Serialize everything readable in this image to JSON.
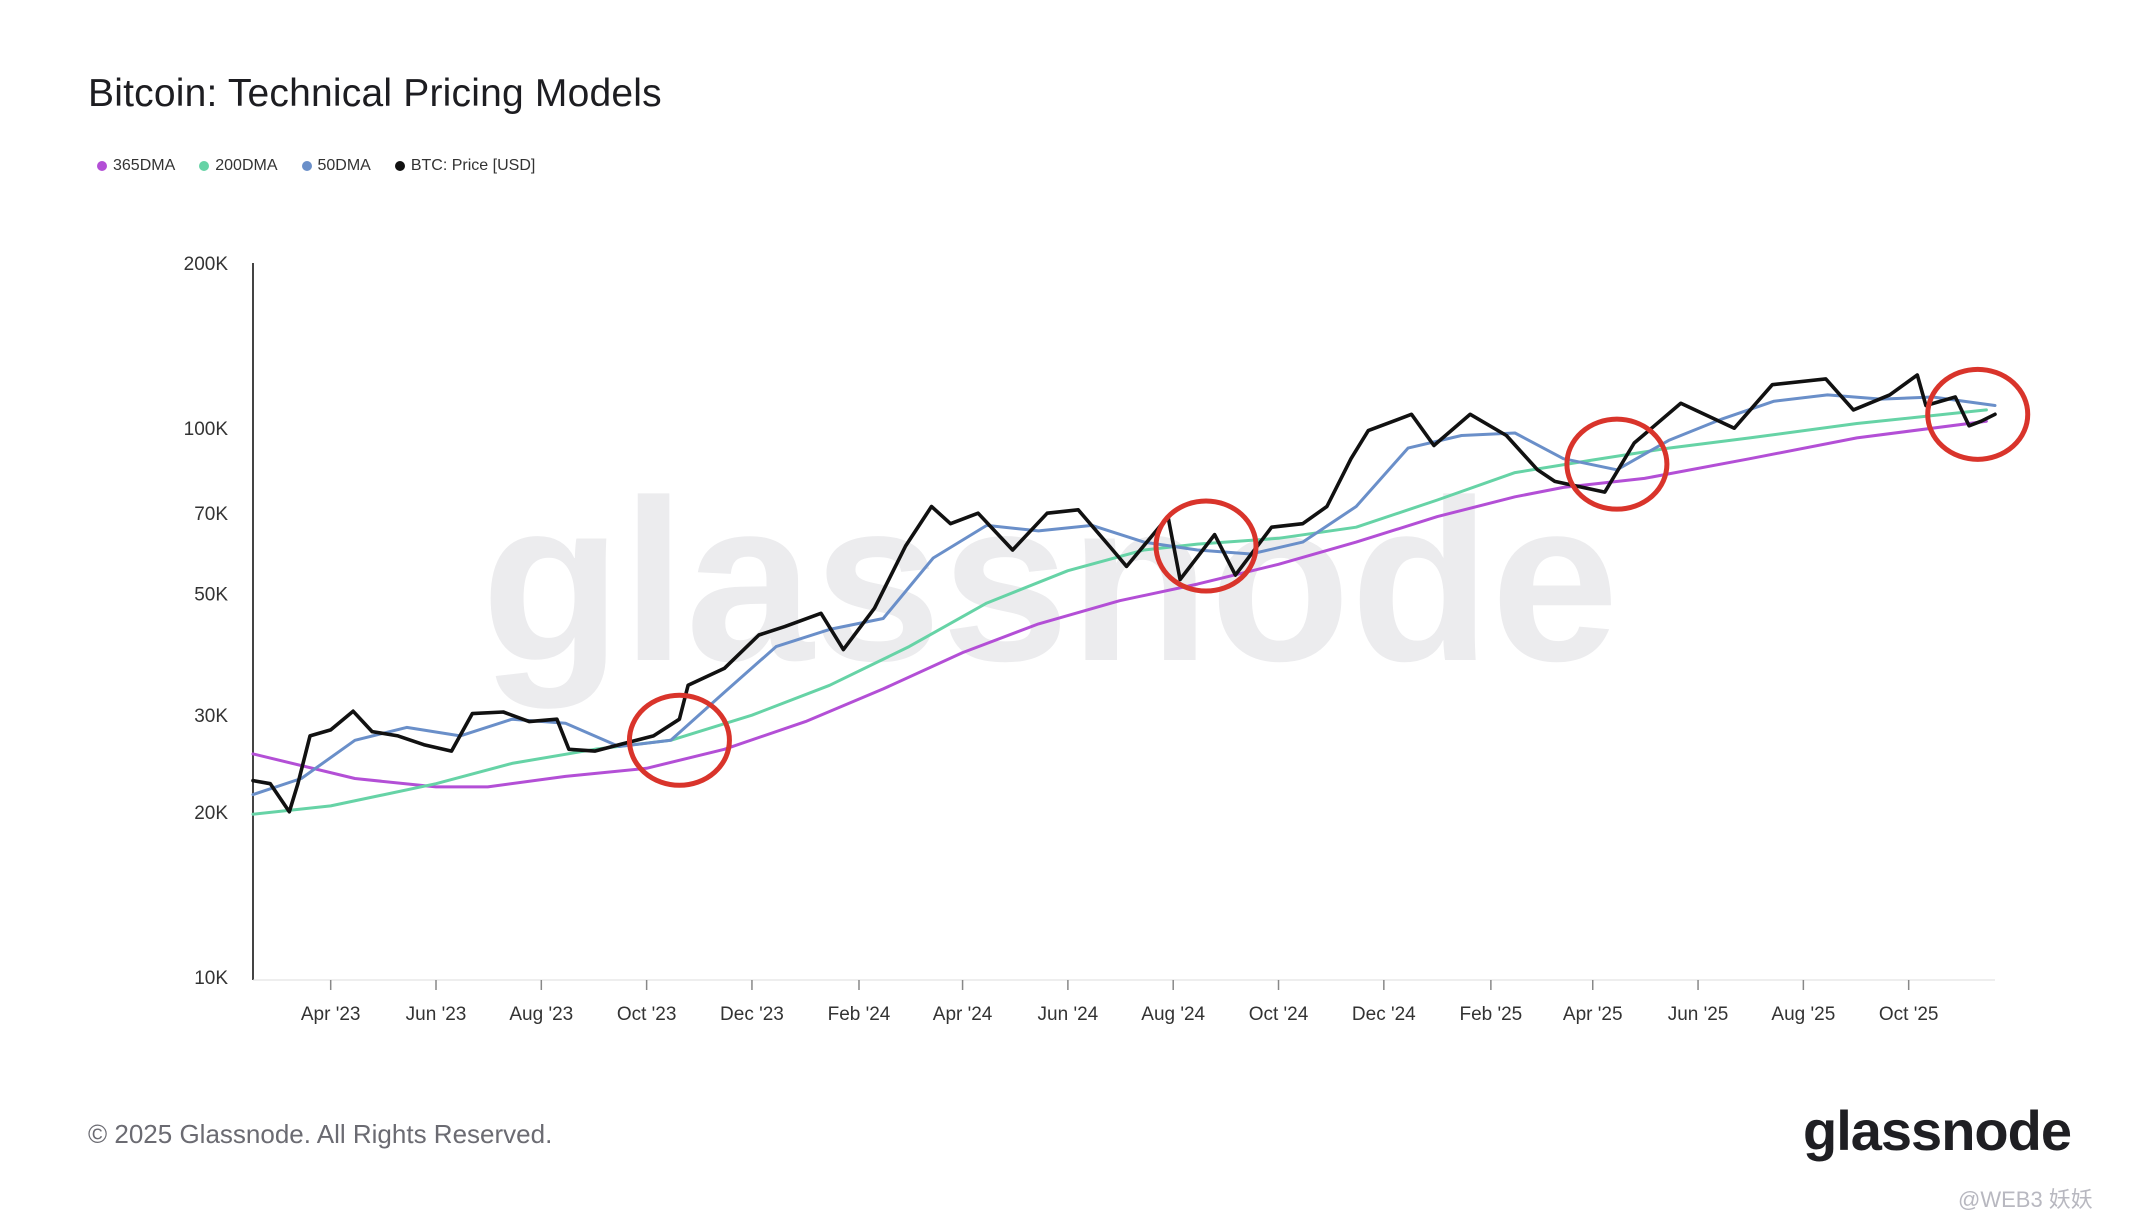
{
  "header": {
    "title": "Bitcoin: Technical Pricing Models"
  },
  "footer": {
    "copyright": "© 2025 Glassnode. All Rights Reserved.",
    "logo": "glassnode",
    "corner_mark": "@WEB3 妖妖"
  },
  "watermark": "glassnode",
  "chart_data": {
    "type": "line",
    "title": "Bitcoin: Technical Pricing Models",
    "xlabel": "",
    "ylabel": "",
    "y_scale": "log",
    "ylim": [
      10000,
      200000
    ],
    "y_ticks": [
      {
        "value": 10000,
        "label": "10K"
      },
      {
        "value": 20000,
        "label": "20K"
      },
      {
        "value": 30000,
        "label": "30K"
      },
      {
        "value": 50000,
        "label": "50K"
      },
      {
        "value": 70000,
        "label": "70K"
      },
      {
        "value": 100000,
        "label": "100K"
      },
      {
        "value": 200000,
        "label": "200K"
      }
    ],
    "xlim": [
      "2023-02-15",
      "2025-11-20"
    ],
    "x_ticks": [
      {
        "date": "2023-04-01",
        "label": "Apr '23"
      },
      {
        "date": "2023-06-01",
        "label": "Jun '23"
      },
      {
        "date": "2023-08-01",
        "label": "Aug '23"
      },
      {
        "date": "2023-10-01",
        "label": "Oct '23"
      },
      {
        "date": "2023-12-01",
        "label": "Dec '23"
      },
      {
        "date": "2024-02-01",
        "label": "Feb '24"
      },
      {
        "date": "2024-04-01",
        "label": "Apr '24"
      },
      {
        "date": "2024-06-01",
        "label": "Jun '24"
      },
      {
        "date": "2024-08-01",
        "label": "Aug '24"
      },
      {
        "date": "2024-10-01",
        "label": "Oct '24"
      },
      {
        "date": "2024-12-01",
        "label": "Dec '24"
      },
      {
        "date": "2025-02-01",
        "label": "Feb '25"
      },
      {
        "date": "2025-04-01",
        "label": "Apr '25"
      },
      {
        "date": "2025-06-01",
        "label": "Jun '25"
      },
      {
        "date": "2025-08-01",
        "label": "Aug '25"
      },
      {
        "date": "2025-10-01",
        "label": "Oct '25"
      }
    ],
    "legend_position": "top-left",
    "grid": false,
    "series": [
      {
        "name": "365DMA",
        "color": "#b34fd6",
        "points": [
          [
            "2023-02-15",
            25500
          ],
          [
            "2023-04-15",
            23000
          ],
          [
            "2023-06-01",
            22200
          ],
          [
            "2023-07-01",
            22200
          ],
          [
            "2023-08-15",
            23200
          ],
          [
            "2023-10-01",
            24000
          ],
          [
            "2023-11-15",
            26000
          ],
          [
            "2024-01-01",
            29200
          ],
          [
            "2024-02-15",
            33500
          ],
          [
            "2024-04-01",
            39000
          ],
          [
            "2024-05-15",
            44000
          ],
          [
            "2024-07-01",
            48500
          ],
          [
            "2024-08-15",
            52000
          ],
          [
            "2024-10-01",
            56500
          ],
          [
            "2024-11-15",
            62000
          ],
          [
            "2025-01-01",
            69000
          ],
          [
            "2025-02-15",
            75000
          ],
          [
            "2025-03-15",
            78000
          ],
          [
            "2025-05-01",
            81000
          ],
          [
            "2025-07-01",
            88000
          ],
          [
            "2025-09-01",
            96000
          ],
          [
            "2025-11-15",
            103000
          ]
        ]
      },
      {
        "name": "200DMA",
        "color": "#66d3a6",
        "points": [
          [
            "2023-02-15",
            19800
          ],
          [
            "2023-04-01",
            20500
          ],
          [
            "2023-06-01",
            22500
          ],
          [
            "2023-07-15",
            24500
          ],
          [
            "2023-09-01",
            26000
          ],
          [
            "2023-10-15",
            27000
          ],
          [
            "2023-12-01",
            30000
          ],
          [
            "2024-01-15",
            34000
          ],
          [
            "2024-03-01",
            40000
          ],
          [
            "2024-04-15",
            48000
          ],
          [
            "2024-06-01",
            55000
          ],
          [
            "2024-07-15",
            60000
          ],
          [
            "2024-08-15",
            61500
          ],
          [
            "2024-10-01",
            63000
          ],
          [
            "2024-11-15",
            66000
          ],
          [
            "2025-01-01",
            74000
          ],
          [
            "2025-02-15",
            83000
          ],
          [
            "2025-04-01",
            87500
          ],
          [
            "2025-05-15",
            92000
          ],
          [
            "2025-07-01",
            96000
          ],
          [
            "2025-09-01",
            102000
          ],
          [
            "2025-11-15",
            108000
          ]
        ]
      },
      {
        "name": "50DMA",
        "color": "#6a8fc9",
        "points": [
          [
            "2023-02-15",
            21500
          ],
          [
            "2023-03-15",
            23000
          ],
          [
            "2023-04-15",
            27000
          ],
          [
            "2023-05-15",
            28500
          ],
          [
            "2023-06-15",
            27500
          ],
          [
            "2023-07-15",
            29500
          ],
          [
            "2023-08-15",
            29000
          ],
          [
            "2023-09-15",
            26300
          ],
          [
            "2023-10-15",
            27000
          ],
          [
            "2023-11-15",
            33000
          ],
          [
            "2023-12-15",
            40000
          ],
          [
            "2024-01-15",
            43000
          ],
          [
            "2024-02-15",
            45000
          ],
          [
            "2024-03-15",
            58000
          ],
          [
            "2024-04-15",
            66500
          ],
          [
            "2024-05-15",
            65000
          ],
          [
            "2024-06-15",
            66500
          ],
          [
            "2024-07-15",
            62000
          ],
          [
            "2024-08-15",
            60000
          ],
          [
            "2024-09-15",
            59000
          ],
          [
            "2024-10-15",
            62000
          ],
          [
            "2024-11-15",
            72000
          ],
          [
            "2024-12-15",
            92000
          ],
          [
            "2025-01-15",
            97000
          ],
          [
            "2025-02-15",
            98000
          ],
          [
            "2025-03-15",
            88000
          ],
          [
            "2025-04-15",
            84000
          ],
          [
            "2025-05-15",
            95000
          ],
          [
            "2025-06-15",
            104000
          ],
          [
            "2025-07-15",
            112000
          ],
          [
            "2025-08-15",
            115000
          ],
          [
            "2025-09-15",
            113000
          ],
          [
            "2025-10-15",
            114000
          ],
          [
            "2025-11-20",
            110000
          ]
        ]
      },
      {
        "name": "BTC: Price [USD]",
        "color": "#111111",
        "points": [
          [
            "2023-02-15",
            22800
          ],
          [
            "2023-02-25",
            22500
          ],
          [
            "2023-03-08",
            20000
          ],
          [
            "2023-03-13",
            22500
          ],
          [
            "2023-03-20",
            27500
          ],
          [
            "2023-04-01",
            28200
          ],
          [
            "2023-04-14",
            30500
          ],
          [
            "2023-04-25",
            28000
          ],
          [
            "2023-05-10",
            27500
          ],
          [
            "2023-05-25",
            26500
          ],
          [
            "2023-06-10",
            25800
          ],
          [
            "2023-06-22",
            30200
          ],
          [
            "2023-07-10",
            30400
          ],
          [
            "2023-07-25",
            29200
          ],
          [
            "2023-08-10",
            29500
          ],
          [
            "2023-08-17",
            26000
          ],
          [
            "2023-09-01",
            25800
          ],
          [
            "2023-09-15",
            26500
          ],
          [
            "2023-10-05",
            27500
          ],
          [
            "2023-10-20",
            29500
          ],
          [
            "2023-10-25",
            34000
          ],
          [
            "2023-11-15",
            36500
          ],
          [
            "2023-12-05",
            42000
          ],
          [
            "2023-12-20",
            43500
          ],
          [
            "2024-01-10",
            46000
          ],
          [
            "2024-01-23",
            39500
          ],
          [
            "2024-02-10",
            47000
          ],
          [
            "2024-02-28",
            61000
          ],
          [
            "2024-03-14",
            72000
          ],
          [
            "2024-03-25",
            67000
          ],
          [
            "2024-04-10",
            70000
          ],
          [
            "2024-04-30",
            60000
          ],
          [
            "2024-05-20",
            70000
          ],
          [
            "2024-06-07",
            71000
          ],
          [
            "2024-06-25",
            61000
          ],
          [
            "2024-07-05",
            56000
          ],
          [
            "2024-07-29",
            69000
          ],
          [
            "2024-08-05",
            53000
          ],
          [
            "2024-08-25",
            64000
          ],
          [
            "2024-09-06",
            54000
          ],
          [
            "2024-09-27",
            66000
          ],
          [
            "2024-10-15",
            67000
          ],
          [
            "2024-10-29",
            72000
          ],
          [
            "2024-11-12",
            88000
          ],
          [
            "2024-11-22",
            99000
          ],
          [
            "2024-12-17",
            106000
          ],
          [
            "2024-12-30",
            93000
          ],
          [
            "2025-01-20",
            106000
          ],
          [
            "2025-02-10",
            97000
          ],
          [
            "2025-02-28",
            84000
          ],
          [
            "2025-03-10",
            80000
          ],
          [
            "2025-04-08",
            76500
          ],
          [
            "2025-04-25",
            94000
          ],
          [
            "2025-05-22",
            111000
          ],
          [
            "2025-06-22",
            100000
          ],
          [
            "2025-07-14",
            120000
          ],
          [
            "2025-08-14",
            123000
          ],
          [
            "2025-08-30",
            108000
          ],
          [
            "2025-09-20",
            115000
          ],
          [
            "2025-10-06",
            125000
          ],
          [
            "2025-10-11",
            110000
          ],
          [
            "2025-10-28",
            114000
          ],
          [
            "2025-11-05",
            101000
          ],
          [
            "2025-11-12",
            103000
          ],
          [
            "2025-11-20",
            106000
          ]
        ]
      }
    ],
    "annotations": [
      {
        "type": "circle",
        "date": "2023-10-20",
        "value": 27000,
        "color": "#d9342b"
      },
      {
        "type": "circle",
        "date": "2024-08-20",
        "value": 61000,
        "color": "#d9342b"
      },
      {
        "type": "circle",
        "date": "2025-04-15",
        "value": 86000,
        "color": "#d9342b"
      },
      {
        "type": "circle",
        "date": "2025-11-10",
        "value": 106000,
        "color": "#d9342b"
      }
    ]
  }
}
